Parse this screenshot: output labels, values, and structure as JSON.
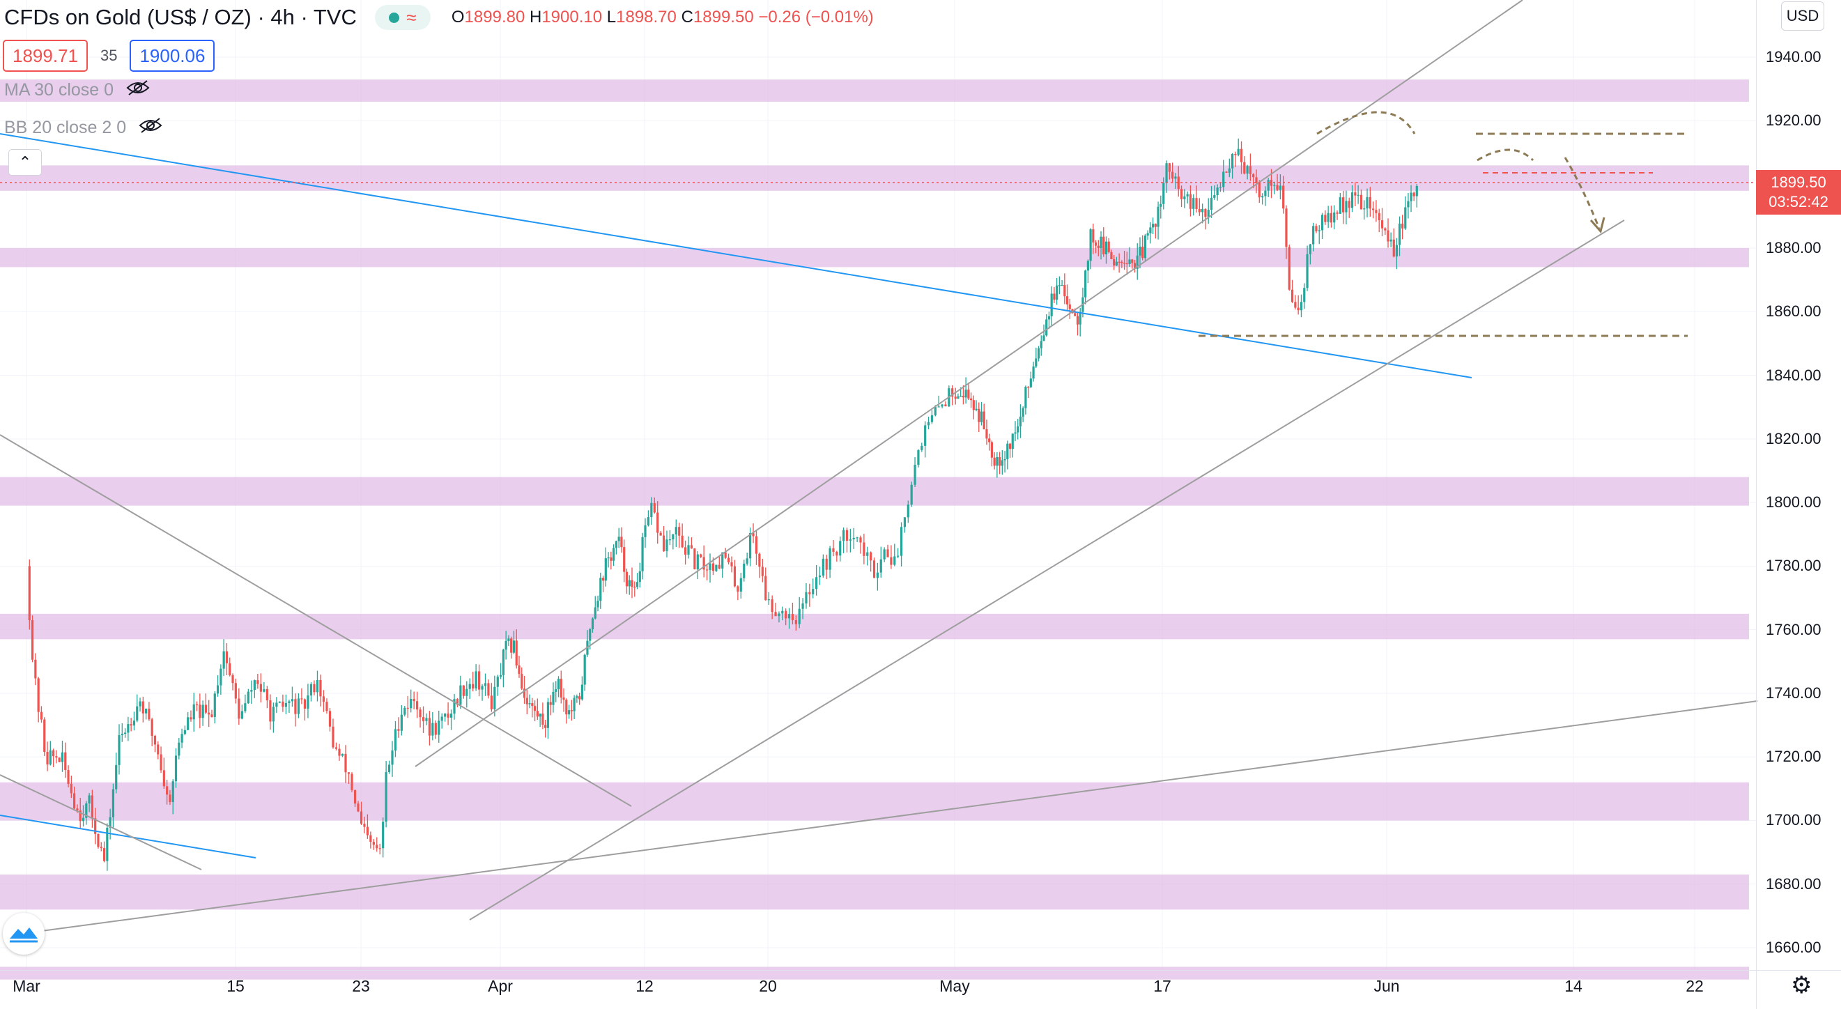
{
  "header": {
    "symbol_title": "CFDs on Gold (US$ / OZ) · 4h · TVC",
    "ohlc": {
      "o_label": "O",
      "o": "1899.80",
      "h_label": "H",
      "h": "1900.10",
      "l_label": "L",
      "l": "1898.70",
      "c_label": "C",
      "c": "1899.50",
      "change": "−0.26 (−0.01%)"
    },
    "bid": "1899.71",
    "spread": "35",
    "ask": "1900.06",
    "indicator_ma": "MA 30 close 0",
    "indicator_bb": "BB 20 close 2 0",
    "currency": "USD"
  },
  "last_price": {
    "price": "1899.50",
    "countdown": "03:52:42",
    "color": "#ef5350"
  },
  "colors": {
    "up": "#26a69a",
    "down": "#ef5350",
    "zone": "#e1bee7",
    "blue_line": "#2196f3",
    "gray_line": "#9e9e9e",
    "annot": "#8d7b55"
  },
  "chart_data": {
    "type": "candlestick",
    "interval": "4h",
    "xlabels": [
      "Mar",
      "15",
      "23",
      "Apr",
      "12",
      "20",
      "May",
      "17",
      "Jun",
      "14",
      "22"
    ],
    "ylabels": [
      "1940.00",
      "1920.00",
      "1880.00",
      "1860.00",
      "1840.00",
      "1820.00",
      "1800.00",
      "1780.00",
      "1760.00",
      "1740.00",
      "1720.00",
      "1700.00",
      "1680.00",
      "1660.00"
    ],
    "ylim": [
      1653,
      1958
    ],
    "path_points": [
      [
        0,
        1780
      ],
      [
        0.5,
        1745
      ],
      [
        1.3,
        1720
      ],
      [
        2.3,
        1720
      ],
      [
        3.5,
        1702
      ],
      [
        4.2,
        1705
      ],
      [
        5.2,
        1687
      ],
      [
        6.2,
        1725
      ],
      [
        7.6,
        1738
      ],
      [
        8.8,
        1722
      ],
      [
        9.5,
        1705
      ],
      [
        10.3,
        1727
      ],
      [
        11.3,
        1735
      ],
      [
        12.3,
        1732
      ],
      [
        13.2,
        1754
      ],
      [
        14.3,
        1732
      ],
      [
        15.3,
        1745
      ],
      [
        16.3,
        1733
      ],
      [
        17.3,
        1737
      ],
      [
        18.3,
        1735
      ],
      [
        19.2,
        1745
      ],
      [
        20.3,
        1723
      ],
      [
        21.2,
        1715
      ],
      [
        22,
        1698
      ],
      [
        22.6,
        1692
      ],
      [
        23.3,
        1690
      ],
      [
        23.6,
        1713
      ],
      [
        24.6,
        1735
      ],
      [
        25.5,
        1738
      ],
      [
        26.4,
        1728
      ],
      [
        27.5,
        1732
      ],
      [
        28.6,
        1742
      ],
      [
        29.5,
        1745
      ],
      [
        30.5,
        1737
      ],
      [
        31.4,
        1754
      ],
      [
        32,
        1755
      ],
      [
        32.8,
        1740
      ],
      [
        33.6,
        1734
      ],
      [
        34.4,
        1731
      ],
      [
        35.3,
        1745
      ],
      [
        36.2,
        1733
      ],
      [
        37,
        1738
      ],
      [
        38,
        1765
      ],
      [
        39,
        1780
      ],
      [
        40,
        1788
      ],
      [
        40.6,
        1777
      ],
      [
        41.2,
        1770
      ],
      [
        42,
        1790
      ],
      [
        42.5,
        1798
      ],
      [
        43.2,
        1786
      ],
      [
        44,
        1790
      ],
      [
        45.3,
        1781
      ],
      [
        46.2,
        1780
      ],
      [
        47.2,
        1783
      ],
      [
        48,
        1773
      ],
      [
        49,
        1791
      ],
      [
        50,
        1768
      ],
      [
        50.8,
        1766
      ],
      [
        51.8,
        1764
      ],
      [
        52.8,
        1777
      ],
      [
        53.8,
        1784
      ],
      [
        55,
        1792
      ],
      [
        56.2,
        1778
      ],
      [
        57,
        1786
      ],
      [
        57.5,
        1780
      ],
      [
        58,
        1796
      ],
      [
        59,
        1820
      ],
      [
        60.3,
        1832
      ],
      [
        61.2,
        1836
      ],
      [
        62.2,
        1833
      ],
      [
        63.2,
        1825
      ],
      [
        64.1,
        1814
      ],
      [
        64.8,
        1815
      ],
      [
        66,
        1825
      ],
      [
        67,
        1843
      ],
      [
        68.2,
        1860
      ],
      [
        68.8,
        1867
      ],
      [
        69.5,
        1865
      ],
      [
        70.5,
        1858
      ],
      [
        71,
        1870
      ],
      [
        71.5,
        1884
      ],
      [
        72.5,
        1880
      ],
      [
        73.3,
        1876
      ],
      [
        74,
        1878
      ],
      [
        75,
        1875
      ],
      [
        76,
        1884
      ],
      [
        77,
        1895
      ],
      [
        77.3,
        1907
      ],
      [
        78,
        1898
      ],
      [
        79,
        1893
      ],
      [
        80,
        1890
      ],
      [
        81,
        1903
      ],
      [
        82,
        1912
      ],
      [
        82.5,
        1905
      ],
      [
        83.5,
        1897
      ],
      [
        84.5,
        1902
      ],
      [
        85,
        1898
      ],
      [
        85.5,
        1865
      ],
      [
        86.2,
        1862
      ],
      [
        87,
        1885
      ],
      [
        88.3,
        1890
      ],
      [
        89.3,
        1895
      ],
      [
        90.2,
        1895
      ],
      [
        91,
        1893
      ],
      [
        91.7,
        1886
      ],
      [
        92.5,
        1880
      ],
      [
        92.8,
        1884
      ],
      [
        93.5,
        1893
      ],
      [
        94.1,
        1899.5
      ]
    ],
    "candle_count": 470,
    "zones": [
      [
        1926,
        1933
      ],
      [
        1898,
        1906
      ],
      [
        1874,
        1880
      ],
      [
        1799,
        1808
      ],
      [
        1757,
        1765
      ],
      [
        1700,
        1712
      ],
      [
        1672,
        1683
      ],
      [
        1650,
        1654
      ]
    ],
    "current_price": 1899.5
  }
}
